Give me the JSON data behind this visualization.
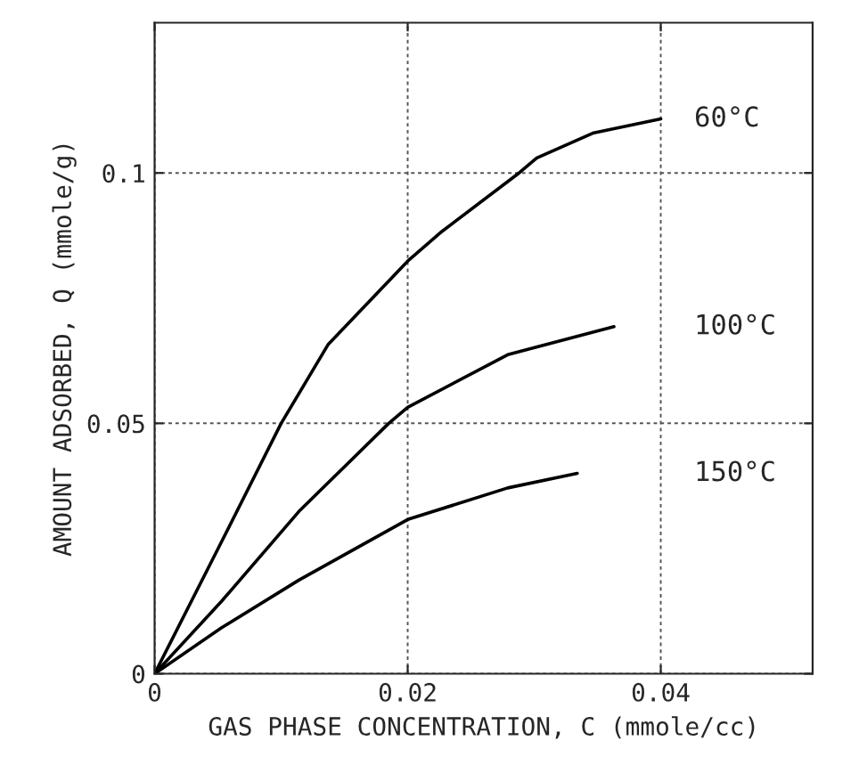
{
  "chart_data": {
    "type": "line",
    "xlabel": "GAS PHASE CONCENTRATION, C (mmole/cc)",
    "ylabel": "AMOUNT ADSORBED, Q (mmole/g)",
    "xlim": [
      0,
      0.052
    ],
    "ylim": [
      0,
      0.13
    ],
    "xticks": [
      0,
      0.02,
      0.04
    ],
    "yticks": [
      0,
      0.05,
      0.1
    ],
    "grid": true,
    "marker": "none",
    "line_style": "solid",
    "series": [
      {
        "name": "60°C",
        "color": "#000000",
        "x": [
          0,
          0.0053,
          0.01,
          0.0137,
          0.02,
          0.0227,
          0.0288,
          0.0302,
          0.0347,
          0.04
        ],
        "values": [
          0,
          0.0264,
          0.05,
          0.0657,
          0.0824,
          0.0883,
          0.1,
          0.103,
          0.108,
          0.1108
        ]
      },
      {
        "name": "100°C",
        "color": "#000000",
        "x": [
          0,
          0.0053,
          0.0114,
          0.0185,
          0.02,
          0.0279,
          0.0363
        ],
        "values": [
          0,
          0.0145,
          0.0324,
          0.05,
          0.0532,
          0.0637,
          0.0693
        ]
      },
      {
        "name": "150°C",
        "color": "#000000",
        "x": [
          0,
          0.0053,
          0.0114,
          0.02,
          0.0279,
          0.0334
        ],
        "values": [
          0,
          0.0092,
          0.0187,
          0.0308,
          0.0371,
          0.04
        ]
      }
    ]
  }
}
